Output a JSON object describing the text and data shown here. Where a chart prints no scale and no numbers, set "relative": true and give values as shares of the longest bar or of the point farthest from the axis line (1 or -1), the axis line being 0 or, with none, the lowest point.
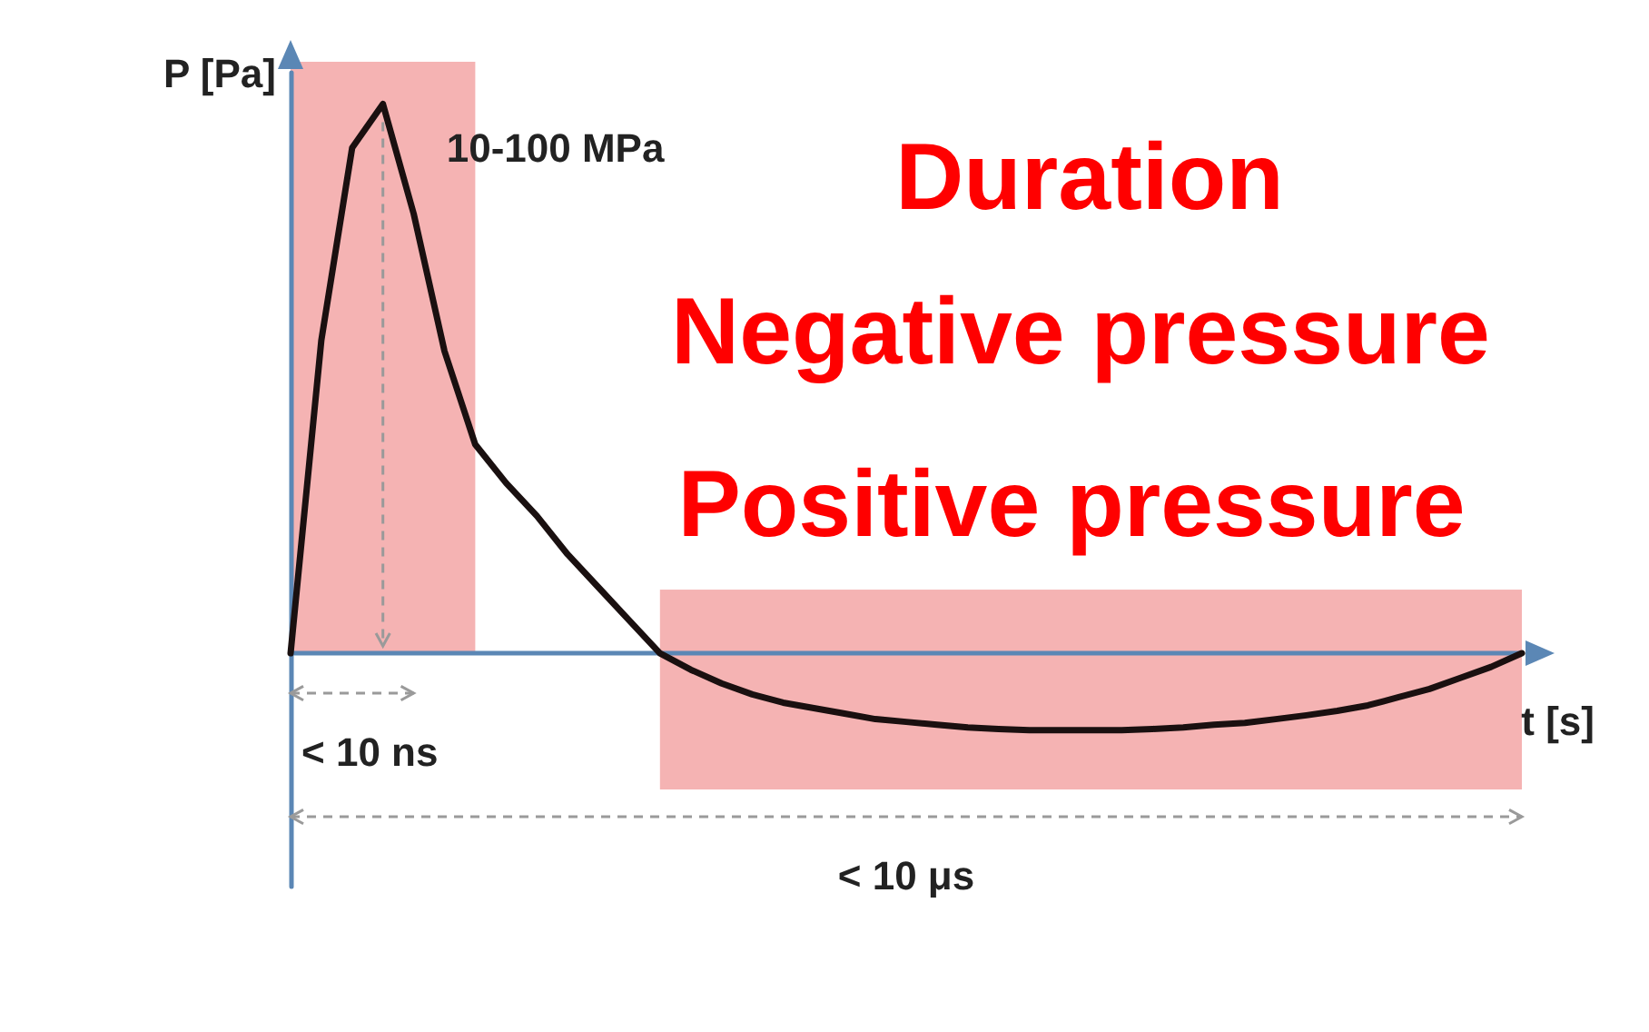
{
  "chart_data": {
    "type": "line",
    "relative": true,
    "xlabel": "t [s]",
    "ylabel": "P [Pa]",
    "tick_labels": false,
    "grid": false,
    "marker": "none",
    "line_style": "solid",
    "categories": [
      null,
      null,
      null,
      null,
      null,
      null,
      null,
      null,
      null,
      null,
      null,
      null,
      null,
      null,
      null,
      null,
      null,
      null,
      null,
      null,
      null,
      null,
      null,
      null,
      null,
      null,
      null,
      null,
      null,
      null,
      null,
      null,
      null,
      null,
      null,
      null,
      null,
      null,
      null,
      null,
      null
    ],
    "series": [
      {
        "color": "#1a1010",
        "values": [
          0,
          0.57,
          0.92,
          1,
          0.8,
          0.55,
          0.38,
          0.31,
          0.25,
          0.18,
          0.12,
          0.06,
          0,
          -0.03,
          -0.055,
          -0.075,
          -0.09,
          -0.1,
          -0.11,
          -0.12,
          -0.125,
          -0.13,
          -0.135,
          -0.138,
          -0.14,
          -0.14,
          -0.14,
          -0.14,
          -0.138,
          -0.135,
          -0.13,
          -0.127,
          -0.12,
          -0.113,
          -0.105,
          -0.095,
          -0.08,
          -0.065,
          -0.045,
          -0.025,
          0
        ]
      }
    ],
    "ref_lines": [
      {
        "axis": "y",
        "value": 0,
        "color": "#5b87b5"
      }
    ],
    "annotations": [
      "10-100 MPa",
      "< 10 ns",
      "< 10 μs",
      "Negative pressure",
      "Positive pressure",
      "Duration"
    ]
  }
}
